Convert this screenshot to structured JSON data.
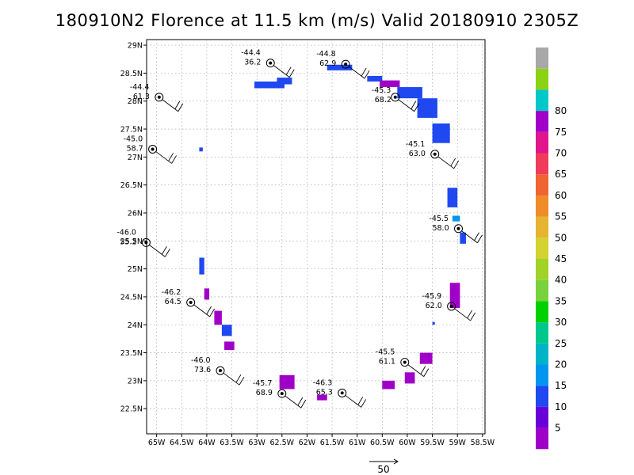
{
  "title": "180910N2 Florence at 11.5 km (m/s) Valid 20180910 2305Z",
  "map": {
    "lon_range": [
      -65.2,
      -58.45
    ],
    "lat_range": [
      22.05,
      29.1
    ],
    "lon_ticks": [
      {
        "v": -65.0,
        "label": "65W"
      },
      {
        "v": -64.5,
        "label": "64.5W"
      },
      {
        "v": -64.0,
        "label": "64W"
      },
      {
        "v": -63.5,
        "label": "63.5W"
      },
      {
        "v": -63.0,
        "label": "63W"
      },
      {
        "v": -62.5,
        "label": "62.5W"
      },
      {
        "v": -62.0,
        "label": "62W"
      },
      {
        "v": -61.5,
        "label": "61.5W"
      },
      {
        "v": -61.0,
        "label": "61W"
      },
      {
        "v": -60.5,
        "label": "60.5W"
      },
      {
        "v": -60.0,
        "label": "60W"
      },
      {
        "v": -59.5,
        "label": "59.5W"
      },
      {
        "v": -59.0,
        "label": "59W"
      },
      {
        "v": -58.5,
        "label": "58.5W"
      }
    ],
    "lat_ticks": [
      {
        "v": 22.5,
        "label": "22.5N"
      },
      {
        "v": 23.0,
        "label": "23N"
      },
      {
        "v": 23.5,
        "label": "23.5N"
      },
      {
        "v": 24.0,
        "label": "24N"
      },
      {
        "v": 24.5,
        "label": "24.5N"
      },
      {
        "v": 25.0,
        "label": "25N"
      },
      {
        "v": 25.5,
        "label": "25.5N"
      },
      {
        "v": 26.0,
        "label": "26N"
      },
      {
        "v": 26.5,
        "label": "26.5N"
      },
      {
        "v": 27.0,
        "label": "27N"
      },
      {
        "v": 27.5,
        "label": "27.5N"
      },
      {
        "v": 28.0,
        "label": "28N"
      },
      {
        "v": 28.5,
        "label": "28.5N"
      },
      {
        "v": 29.0,
        "label": "29N"
      }
    ],
    "wind_patches": [
      {
        "lon": -63.05,
        "lat": 28.23,
        "dlon": 0.6,
        "dlat": 0.12,
        "level": 15
      },
      {
        "lon": -62.6,
        "lat": 28.3,
        "dlon": 0.3,
        "dlat": 0.12,
        "level": 15
      },
      {
        "lon": -61.6,
        "lat": 28.55,
        "dlon": 0.5,
        "dlat": 0.1,
        "level": 15
      },
      {
        "lon": -60.8,
        "lat": 28.35,
        "dlon": 0.3,
        "dlat": 0.1,
        "level": 15
      },
      {
        "lon": -60.55,
        "lat": 28.25,
        "dlon": 0.4,
        "dlat": 0.12,
        "level": 5
      },
      {
        "lon": -60.2,
        "lat": 28.05,
        "dlon": 0.5,
        "dlat": 0.2,
        "level": 15
      },
      {
        "lon": -59.8,
        "lat": 27.7,
        "dlon": 0.4,
        "dlat": 0.35,
        "level": 15
      },
      {
        "lon": -59.5,
        "lat": 27.25,
        "dlon": 0.35,
        "dlat": 0.35,
        "level": 15
      },
      {
        "lon": -64.15,
        "lat": 27.1,
        "dlon": 0.07,
        "dlat": 0.07,
        "level": 15
      },
      {
        "lon": -59.2,
        "lat": 26.1,
        "dlon": 0.2,
        "dlat": 0.35,
        "level": 15
      },
      {
        "lon": -59.1,
        "lat": 25.85,
        "dlon": 0.15,
        "dlat": 0.1,
        "level": 18
      },
      {
        "lon": -58.95,
        "lat": 25.45,
        "dlon": 0.12,
        "dlat": 0.2,
        "level": 15
      },
      {
        "lon": -64.15,
        "lat": 24.9,
        "dlon": 0.1,
        "dlat": 0.3,
        "level": 15
      },
      {
        "lon": -64.05,
        "lat": 24.45,
        "dlon": 0.1,
        "dlat": 0.2,
        "level": 5
      },
      {
        "lon": -63.85,
        "lat": 24.0,
        "dlon": 0.15,
        "dlat": 0.25,
        "level": 5
      },
      {
        "lon": -63.7,
        "lat": 23.8,
        "dlon": 0.2,
        "dlat": 0.2,
        "level": 15
      },
      {
        "lon": -63.65,
        "lat": 23.55,
        "dlon": 0.2,
        "dlat": 0.15,
        "level": 5
      },
      {
        "lon": -59.15,
        "lat": 24.3,
        "dlon": 0.2,
        "dlat": 0.45,
        "level": 5
      },
      {
        "lon": -59.75,
        "lat": 23.3,
        "dlon": 0.25,
        "dlat": 0.2,
        "level": 5
      },
      {
        "lon": -60.05,
        "lat": 22.95,
        "dlon": 0.2,
        "dlat": 0.2,
        "level": 5
      },
      {
        "lon": -60.5,
        "lat": 22.85,
        "dlon": 0.25,
        "dlat": 0.15,
        "level": 5
      },
      {
        "lon": -62.55,
        "lat": 22.85,
        "dlon": 0.3,
        "dlat": 0.25,
        "level": 5
      },
      {
        "lon": -61.8,
        "lat": 22.65,
        "dlon": 0.2,
        "dlat": 0.1,
        "level": 5
      },
      {
        "lon": -59.5,
        "lat": 24.0,
        "dlon": 0.05,
        "dlat": 0.05,
        "level": 15
      }
    ],
    "stations": [
      {
        "lon": -62.73,
        "lat": 28.68,
        "t": "-44.4",
        "s": "36.2",
        "tx": -37,
        "ty": -10
      },
      {
        "lon": -61.23,
        "lat": 28.66,
        "t": "-44.8",
        "s": "62.9",
        "tx": -37,
        "ty": -10
      },
      {
        "lon": -60.24,
        "lat": 28.07,
        "t": "-45.3",
        "s": "68.2",
        "tx": -30,
        "ty": -6
      },
      {
        "lon": -64.95,
        "lat": 28.07,
        "t": "-44.4",
        "s": "61.3",
        "tx": -37,
        "ty": -10
      },
      {
        "lon": -65.08,
        "lat": 27.14,
        "t": "-45.0",
        "s": "58.7",
        "tx": -37,
        "ty": -10
      },
      {
        "lon": -59.45,
        "lat": 27.05,
        "t": "-45.1",
        "s": "63.0",
        "tx": -37,
        "ty": -10
      },
      {
        "lon": -65.21,
        "lat": 25.47,
        "t": "-46.0",
        "s": "55.2",
        "tx": -37,
        "ty": -10
      },
      {
        "lon": -58.98,
        "lat": 25.72,
        "t": "-45.5",
        "s": "58.0",
        "tx": -37,
        "ty": -10
      },
      {
        "lon": -64.32,
        "lat": 24.4,
        "t": "-46.2",
        "s": "64.5",
        "tx": -37,
        "ty": -10
      },
      {
        "lon": -59.12,
        "lat": 24.33,
        "t": "-45.9",
        "s": "62.0",
        "tx": -37,
        "ty": -10
      },
      {
        "lon": -63.73,
        "lat": 23.18,
        "t": "-46.0",
        "s": "73.6",
        "tx": -37,
        "ty": -10
      },
      {
        "lon": -60.05,
        "lat": 23.33,
        "t": "-45.5",
        "s": "61.1",
        "tx": -37,
        "ty": -10
      },
      {
        "lon": -62.5,
        "lat": 22.77,
        "t": "-45.7",
        "s": "68.9",
        "tx": -37,
        "ty": -10
      },
      {
        "lon": -61.3,
        "lat": 22.78,
        "t": "-46.3",
        "s": "65.3",
        "tx": -37,
        "ty": -10
      }
    ],
    "wind_vector_label": "50"
  },
  "legend": {
    "levels": [
      "5",
      "10",
      "15",
      "20",
      "25",
      "30",
      "35",
      "40",
      "45",
      "50",
      "55",
      "60",
      "65",
      "70",
      "75",
      "80"
    ],
    "colors": [
      "#9f00c8",
      "#6a00d8",
      "#1f48f0",
      "#0096f0",
      "#00b4c8",
      "#00c88c",
      "#00d000",
      "#78d23c",
      "#a0d228",
      "#d2d230",
      "#e6b432",
      "#ee8c28",
      "#f06432",
      "#f03c5a",
      "#e0148c",
      "#a000c8",
      "#00c8c8",
      "#8cd214",
      "#a8a8a8"
    ]
  }
}
